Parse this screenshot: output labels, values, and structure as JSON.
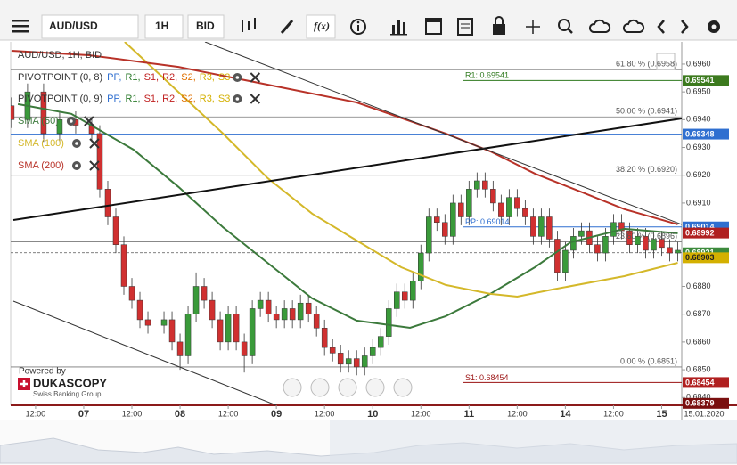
{
  "toolbar": {
    "instrument": "AUD/USD",
    "period": "1H",
    "side": "BID",
    "fx": "f(x)"
  },
  "legend": {
    "title": "AUD/USD, 1H, BID",
    "pivots": [
      {
        "name": "PIVOTPOINT (0, 8)",
        "items": [
          {
            "text": "PP,",
            "color": "#2f6fd0"
          },
          {
            "text": "R1,",
            "color": "#2a7a2a"
          },
          {
            "text": "S1,",
            "color": "#c02020"
          },
          {
            "text": "R2,",
            "color": "#c02020"
          },
          {
            "text": "S2,",
            "color": "#e07000"
          },
          {
            "text": "R3,",
            "color": "#d4b000"
          },
          {
            "text": "S3",
            "color": "#d4b000"
          }
        ]
      },
      {
        "name": "PIVOTPOINT (0, 9)",
        "items": [
          {
            "text": "PP,",
            "color": "#2f6fd0"
          },
          {
            "text": "R1,",
            "color": "#2a7a2a"
          },
          {
            "text": "S1,",
            "color": "#c02020"
          },
          {
            "text": "R2,",
            "color": "#c02020"
          },
          {
            "text": "S2,",
            "color": "#e07000"
          },
          {
            "text": "R3,",
            "color": "#d4b000"
          },
          {
            "text": "S3",
            "color": "#d4b000"
          }
        ]
      }
    ]
  },
  "branding": {
    "powered": "Powered by",
    "name": "DUKASCOPY",
    "tagline": "Swiss Banking Group"
  },
  "chart_data": {
    "type": "candlestick",
    "up_color": "#3a9a3a",
    "down_color": "#d03030",
    "xlim": [
      5.8,
      173
    ],
    "ylim": [
      0.68372,
      0.6968
    ],
    "xticks": [
      {
        "value": 12,
        "label": "12:00"
      },
      {
        "value": 24,
        "label": "07"
      },
      {
        "value": 36,
        "label": "12:00"
      },
      {
        "value": 48,
        "label": "08"
      },
      {
        "value": 60,
        "label": "12:00"
      },
      {
        "value": 72,
        "label": "09"
      },
      {
        "value": 84,
        "label": "12:00"
      },
      {
        "value": 96,
        "label": "10"
      },
      {
        "value": 108,
        "label": "12:00"
      },
      {
        "value": 120,
        "label": "11"
      },
      {
        "value": 132,
        "label": "12:00"
      },
      {
        "value": 144,
        "label": "14"
      },
      {
        "value": 156,
        "label": "12:00"
      },
      {
        "value": 168,
        "label": "15"
      }
    ],
    "date_label": "15.01.2020",
    "yticks": [
      {
        "value": 0.696,
        "label": "0.6960"
      },
      {
        "value": 0.695,
        "label": "0.6950"
      },
      {
        "value": 0.694,
        "label": "0.6940"
      },
      {
        "value": 0.693,
        "label": "0.6930"
      },
      {
        "value": 0.692,
        "label": "0.6920"
      },
      {
        "value": 0.691,
        "label": "0.6910"
      },
      {
        "value": 0.688,
        "label": "0.6880"
      },
      {
        "value": 0.687,
        "label": "0.6870"
      },
      {
        "value": 0.686,
        "label": "0.6860"
      },
      {
        "value": 0.685,
        "label": "0.6850"
      },
      {
        "value": 0.684,
        "label": "0.6840"
      }
    ],
    "x": [
      6,
      10,
      14,
      18,
      22,
      26,
      28,
      30,
      32,
      34,
      36,
      38,
      40,
      44,
      46,
      48,
      50,
      52,
      54,
      56,
      58,
      60,
      62,
      64,
      66,
      68,
      70,
      72,
      74,
      76,
      78,
      80,
      82,
      84,
      86,
      88,
      90,
      92,
      94,
      96,
      98,
      100,
      102,
      104,
      106,
      108,
      110,
      112,
      114,
      116,
      118,
      120,
      122,
      124,
      126,
      128,
      130,
      132,
      134,
      136,
      138,
      140,
      142,
      144,
      146,
      148,
      150,
      152,
      154,
      156,
      158,
      160,
      162,
      164,
      166,
      168,
      170,
      172
    ],
    "open": [
      0.6945,
      0.694,
      0.695,
      0.6935,
      0.694,
      0.6938,
      0.6935,
      0.6915,
      0.6905,
      0.6895,
      0.688,
      0.6875,
      0.6868,
      0.6866,
      0.6868,
      0.686,
      0.6855,
      0.687,
      0.688,
      0.6875,
      0.6868,
      0.686,
      0.687,
      0.686,
      0.6855,
      0.6872,
      0.6875,
      0.687,
      0.6868,
      0.6872,
      0.6868,
      0.6874,
      0.687,
      0.6865,
      0.6858,
      0.6856,
      0.6852,
      0.6854,
      0.6851,
      0.6855,
      0.6858,
      0.6862,
      0.6872,
      0.6878,
      0.6875,
      0.6882,
      0.6892,
      0.6905,
      0.6903,
      0.6898,
      0.691,
      0.6905,
      0.6915,
      0.6918,
      0.6915,
      0.691,
      0.6905,
      0.6912,
      0.6908,
      0.6905,
      0.6898,
      0.6905,
      0.6897,
      0.6885,
      0.6893,
      0.6898,
      0.69,
      0.6895,
      0.6892,
      0.6898,
      0.6903,
      0.69,
      0.6895,
      0.6898,
      0.6893,
      0.6897,
      0.6894,
      0.6892
    ],
    "close": [
      0.694,
      0.695,
      0.6935,
      0.694,
      0.6938,
      0.6935,
      0.6915,
      0.6905,
      0.6895,
      0.688,
      0.6875,
      0.6868,
      0.6866,
      0.6868,
      0.686,
      0.6855,
      0.687,
      0.688,
      0.6875,
      0.6868,
      0.686,
      0.687,
      0.686,
      0.6855,
      0.6872,
      0.6875,
      0.687,
      0.6868,
      0.6872,
      0.6868,
      0.6874,
      0.687,
      0.6865,
      0.6858,
      0.6856,
      0.6852,
      0.6854,
      0.6851,
      0.6855,
      0.6858,
      0.6862,
      0.6872,
      0.6878,
      0.6875,
      0.6882,
      0.6892,
      0.6905,
      0.6903,
      0.6898,
      0.691,
      0.6905,
      0.6915,
      0.6918,
      0.6915,
      0.691,
      0.6905,
      0.6912,
      0.6908,
      0.6905,
      0.6898,
      0.6905,
      0.6897,
      0.6885,
      0.6893,
      0.6898,
      0.69,
      0.6895,
      0.6892,
      0.6898,
      0.6903,
      0.69,
      0.6895,
      0.6898,
      0.6893,
      0.6897,
      0.6894,
      0.6892,
      0.6893
    ],
    "high": [
      0.6948,
      0.6953,
      0.6953,
      0.6943,
      0.6943,
      0.6941,
      0.6938,
      0.6918,
      0.6908,
      0.6898,
      0.6883,
      0.6878,
      0.6871,
      0.6871,
      0.6871,
      0.6863,
      0.6873,
      0.6885,
      0.6883,
      0.6878,
      0.6871,
      0.6873,
      0.6873,
      0.6863,
      0.6875,
      0.6878,
      0.6878,
      0.6873,
      0.6875,
      0.6875,
      0.6877,
      0.6877,
      0.6873,
      0.6868,
      0.6861,
      0.6859,
      0.6857,
      0.6857,
      0.6858,
      0.6861,
      0.6865,
      0.6875,
      0.6881,
      0.6881,
      0.6885,
      0.6895,
      0.6908,
      0.6908,
      0.6906,
      0.6913,
      0.6913,
      0.6918,
      0.6921,
      0.6921,
      0.6918,
      0.6913,
      0.6915,
      0.6915,
      0.6911,
      0.6908,
      0.6908,
      0.6908,
      0.69,
      0.6896,
      0.6901,
      0.6903,
      0.6903,
      0.6898,
      0.6901,
      0.6906,
      0.6906,
      0.6903,
      0.6901,
      0.6901,
      0.69,
      0.69,
      0.6897,
      0.6896
    ],
    "low": [
      0.6937,
      0.6937,
      0.6932,
      0.6932,
      0.6935,
      0.6932,
      0.6912,
      0.6902,
      0.6892,
      0.6877,
      0.6872,
      0.6865,
      0.6863,
      0.6863,
      0.6857,
      0.685,
      0.6852,
      0.6867,
      0.6872,
      0.6865,
      0.6857,
      0.6857,
      0.6857,
      0.6849,
      0.6852,
      0.6869,
      0.6867,
      0.6865,
      0.6865,
      0.6865,
      0.6865,
      0.6867,
      0.6862,
      0.6855,
      0.6853,
      0.6849,
      0.6849,
      0.6848,
      0.6848,
      0.6852,
      0.6855,
      0.6859,
      0.6869,
      0.6872,
      0.6872,
      0.6879,
      0.6889,
      0.69,
      0.6895,
      0.6895,
      0.6902,
      0.6902,
      0.6912,
      0.6912,
      0.6907,
      0.6902,
      0.6902,
      0.6905,
      0.6902,
      0.6895,
      0.6895,
      0.6894,
      0.6882,
      0.6882,
      0.689,
      0.6895,
      0.6892,
      0.6889,
      0.6889,
      0.6895,
      0.6897,
      0.6892,
      0.6892,
      0.689,
      0.689,
      0.6891,
      0.6889,
      0.6889
    ],
    "series": [
      {
        "name": "SMA (50)",
        "color": "#3c7a3c",
        "x": [
          7.6,
          20.9,
          36.4,
          47.6,
          58.7,
          69.8,
          80.9,
          92,
          105.3,
          114.2,
          125.3,
          136.4,
          145.3,
          158.7,
          172
        ],
        "values": [
          0.69456,
          0.69421,
          0.69292,
          0.69158,
          0.69013,
          0.68885,
          0.68757,
          0.68677,
          0.68651,
          0.68693,
          0.68773,
          0.68869,
          0.68959,
          0.69007,
          0.68991
        ]
      },
      {
        "name": "SMA (100)",
        "color": "#d4b82a",
        "x": [
          34.2,
          58.7,
          69.8,
          80.9,
          92,
          103.1,
          114.2,
          125.3,
          132,
          140.9,
          158.7,
          172
        ],
        "values": [
          0.6968,
          0.6935,
          0.6919,
          0.69062,
          0.68965,
          0.68869,
          0.68805,
          0.68773,
          0.68763,
          0.68789,
          0.68837,
          0.68885
        ]
      },
      {
        "name": "SMA (200)",
        "color": "#b83228",
        "x": [
          6,
          25.3,
          47.6,
          69.8,
          92,
          114.2,
          125.3,
          136.4,
          147.6,
          158.7,
          172
        ],
        "values": [
          0.69648,
          0.69632,
          0.6959,
          0.69526,
          0.69462,
          0.6935,
          0.69286,
          0.69206,
          0.69142,
          0.69078,
          0.69023
        ]
      }
    ],
    "levels": [
      {
        "label": "61.80 % (0.6958)",
        "value": 0.6958
      },
      {
        "label": "50.00 % (0.6941)",
        "value": 0.6941
      },
      {
        "label": "38.20 % (0.6920)",
        "value": 0.692
      },
      {
        "label": "23.60 % (0.6896)",
        "value": 0.6896
      },
      {
        "label": "0.00 % (0.6851)",
        "value": 0.6851
      }
    ],
    "pivots": [
      {
        "label": "R1: 0.69541",
        "value": 0.69541,
        "color": "#2f7a1e"
      },
      {
        "label": "PP: 0.69014",
        "value": 0.69014,
        "color": "#2f6fd0"
      },
      {
        "label": "S1: 0.68454",
        "value": 0.68454,
        "color": "#9a1010"
      }
    ],
    "price_tags": [
      {
        "value": 0.69541,
        "color": "#3c7a1e"
      },
      {
        "value": 0.69348,
        "color": "#2f6fd0",
        "line": "solid"
      },
      {
        "value": 0.69014,
        "color": "#2f6fd0"
      },
      {
        "value": 0.68921,
        "color": "#3c8a3c",
        "line": "dashed"
      },
      {
        "value": 0.68992,
        "color": "#b02020"
      },
      {
        "value": 0.68903,
        "color": "#d4b000"
      },
      {
        "value": 0.68454,
        "color": "#b02020"
      },
      {
        "value": 0.68379,
        "color": "#7a1010"
      }
    ]
  }
}
